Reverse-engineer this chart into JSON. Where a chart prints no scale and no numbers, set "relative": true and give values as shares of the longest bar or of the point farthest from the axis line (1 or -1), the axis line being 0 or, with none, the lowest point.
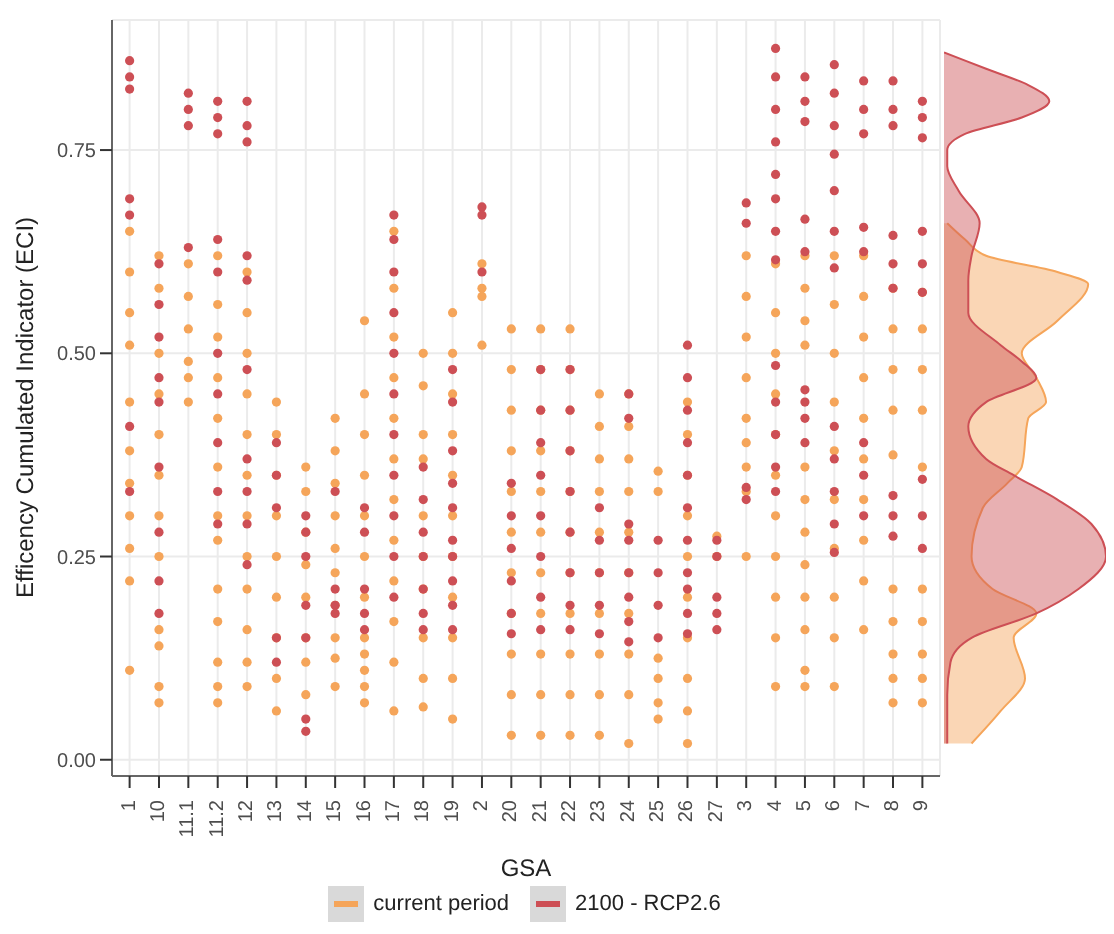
{
  "chart_data": [
    {
      "type": "scatter",
      "xlabel": "GSA",
      "ylabel": "Efficency Cumulated Indicator (ECI)",
      "categories": [
        "1",
        "10",
        "11.1",
        "11.2",
        "12",
        "13",
        "14",
        "15",
        "16",
        "17",
        "18",
        "19",
        "2",
        "20",
        "21",
        "22",
        "23",
        "24",
        "25",
        "26",
        "27",
        "3",
        "4",
        "5",
        "6",
        "7",
        "8",
        "9"
      ],
      "ylim": [
        -0.02,
        0.91
      ],
      "yticks": [
        {
          "value": 0,
          "label": "0.00"
        },
        {
          "value": 0.25,
          "label": "0.25"
        },
        {
          "value": 0.5,
          "label": "0.50"
        },
        {
          "value": 0.75,
          "label": "0.75"
        }
      ],
      "grid": true,
      "legend": "bottom",
      "marker": "circle",
      "series": [
        {
          "name": "current period",
          "color": "#f5a55a",
          "x": [
            "1",
            "1",
            "1",
            "1",
            "1",
            "1",
            "1",
            "1",
            "1",
            "1",
            "1",
            "10",
            "10",
            "10",
            "10",
            "10",
            "10",
            "10",
            "10",
            "10",
            "10",
            "10",
            "10",
            "11.1",
            "11.1",
            "11.1",
            "11.1",
            "11.1",
            "11.1",
            "11.2",
            "11.2",
            "11.2",
            "11.2",
            "11.2",
            "11.2",
            "11.2",
            "11.2",
            "11.2",
            "11.2",
            "11.2",
            "11.2",
            "11.2",
            "12",
            "12",
            "12",
            "12",
            "12",
            "12",
            "12",
            "12",
            "12",
            "12",
            "12",
            "12",
            "13",
            "13",
            "13",
            "13",
            "13",
            "13",
            "13",
            "13",
            "13",
            "14",
            "14",
            "14",
            "14",
            "14",
            "14",
            "14",
            "14",
            "15",
            "15",
            "15",
            "15",
            "15",
            "15",
            "15",
            "15",
            "15",
            "15",
            "16",
            "16",
            "16",
            "16",
            "16",
            "16",
            "16",
            "16",
            "16",
            "16",
            "16",
            "16",
            "17",
            "17",
            "17",
            "17",
            "17",
            "17",
            "17",
            "17",
            "17",
            "17",
            "17",
            "17",
            "18",
            "18",
            "18",
            "18",
            "18",
            "18",
            "18",
            "18",
            "18",
            "18",
            "19",
            "19",
            "19",
            "19",
            "19",
            "19",
            "19",
            "19",
            "19",
            "19",
            "19",
            "2",
            "2",
            "2",
            "2",
            "20",
            "20",
            "20",
            "20",
            "20",
            "20",
            "20",
            "20",
            "20",
            "20",
            "20",
            "21",
            "21",
            "21",
            "21",
            "21",
            "21",
            "21",
            "21",
            "21",
            "21",
            "21",
            "22",
            "22",
            "22",
            "22",
            "22",
            "22",
            "22",
            "22",
            "22",
            "22",
            "22",
            "23",
            "23",
            "23",
            "23",
            "23",
            "23",
            "23",
            "23",
            "23",
            "23",
            "24",
            "24",
            "24",
            "24",
            "24",
            "24",
            "24",
            "24",
            "24",
            "24",
            "25",
            "25",
            "25",
            "25",
            "25",
            "25",
            "26",
            "26",
            "26",
            "26",
            "26",
            "26",
            "26",
            "26",
            "26",
            "26",
            "27",
            "27",
            "3",
            "3",
            "3",
            "3",
            "3",
            "3",
            "3",
            "3",
            "3",
            "4",
            "4",
            "4",
            "4",
            "4",
            "4",
            "4",
            "4",
            "4",
            "4",
            "4",
            "5",
            "5",
            "5",
            "5",
            "5",
            "5",
            "5",
            "5",
            "5",
            "5",
            "5",
            "5",
            "6",
            "6",
            "6",
            "6",
            "6",
            "6",
            "6",
            "6",
            "6",
            "6",
            "7",
            "7",
            "7",
            "7",
            "7",
            "7",
            "7",
            "7",
            "7",
            "7",
            "8",
            "8",
            "8",
            "8",
            "8",
            "8",
            "8",
            "8",
            "8",
            "8",
            "9",
            "9",
            "9",
            "9",
            "9",
            "9",
            "9",
            "9",
            "9",
            "9"
          ],
          "values": [
            0.65,
            0.6,
            0.55,
            0.51,
            0.44,
            0.38,
            0.34,
            0.3,
            0.26,
            0.22,
            0.11,
            0.62,
            0.58,
            0.5,
            0.45,
            0.4,
            0.35,
            0.3,
            0.25,
            0.16,
            0.14,
            0.09,
            0.07,
            0.61,
            0.57,
            0.53,
            0.49,
            0.47,
            0.44,
            0.62,
            0.56,
            0.52,
            0.47,
            0.42,
            0.36,
            0.3,
            0.27,
            0.21,
            0.17,
            0.12,
            0.09,
            0.07,
            0.6,
            0.55,
            0.5,
            0.45,
            0.4,
            0.35,
            0.3,
            0.25,
            0.21,
            0.16,
            0.12,
            0.09,
            0.44,
            0.4,
            0.35,
            0.3,
            0.25,
            0.2,
            0.15,
            0.1,
            0.06,
            0.36,
            0.33,
            0.28,
            0.24,
            0.2,
            0.15,
            0.12,
            0.08,
            0.42,
            0.38,
            0.34,
            0.3,
            0.26,
            0.23,
            0.19,
            0.15,
            0.125,
            0.09,
            0.54,
            0.45,
            0.4,
            0.35,
            0.3,
            0.25,
            0.2,
            0.15,
            0.13,
            0.11,
            0.09,
            0.07,
            0.65,
            0.58,
            0.52,
            0.47,
            0.42,
            0.37,
            0.32,
            0.27,
            0.22,
            0.17,
            0.12,
            0.06,
            0.5,
            0.46,
            0.4,
            0.37,
            0.3,
            0.25,
            0.21,
            0.15,
            0.1,
            0.065,
            0.55,
            0.5,
            0.45,
            0.4,
            0.35,
            0.3,
            0.25,
            0.2,
            0.15,
            0.1,
            0.05,
            0.61,
            0.58,
            0.57,
            0.51,
            0.53,
            0.48,
            0.43,
            0.38,
            0.33,
            0.28,
            0.23,
            0.18,
            0.13,
            0.08,
            0.03,
            0.53,
            0.48,
            0.43,
            0.38,
            0.33,
            0.28,
            0.23,
            0.18,
            0.13,
            0.08,
            0.03,
            0.53,
            0.48,
            0.43,
            0.38,
            0.33,
            0.28,
            0.23,
            0.18,
            0.13,
            0.08,
            0.03,
            0.45,
            0.41,
            0.37,
            0.33,
            0.28,
            0.23,
            0.18,
            0.13,
            0.08,
            0.03,
            0.45,
            0.41,
            0.37,
            0.33,
            0.28,
            0.23,
            0.18,
            0.13,
            0.08,
            0.02,
            0.355,
            0.33,
            0.125,
            0.1,
            0.07,
            0.05,
            0.44,
            0.4,
            0.35,
            0.3,
            0.25,
            0.2,
            0.15,
            0.1,
            0.06,
            0.02,
            0.275,
            0.25,
            0.62,
            0.57,
            0.52,
            0.47,
            0.42,
            0.39,
            0.36,
            0.33,
            0.25,
            0.61,
            0.55,
            0.5,
            0.45,
            0.4,
            0.35,
            0.3,
            0.25,
            0.2,
            0.15,
            0.09,
            0.62,
            0.58,
            0.54,
            0.51,
            0.36,
            0.32,
            0.28,
            0.24,
            0.2,
            0.16,
            0.11,
            0.09,
            0.62,
            0.56,
            0.5,
            0.44,
            0.38,
            0.32,
            0.26,
            0.2,
            0.15,
            0.09,
            0.62,
            0.57,
            0.52,
            0.47,
            0.42,
            0.37,
            0.32,
            0.27,
            0.22,
            0.16,
            0.58,
            0.53,
            0.48,
            0.43,
            0.375,
            0.21,
            0.17,
            0.13,
            0.1,
            0.07,
            0.575,
            0.53,
            0.48,
            0.43,
            0.36,
            0.21,
            0.17,
            0.13,
            0.1,
            0.07
          ]
        },
        {
          "name": "2100 - RCP2.6",
          "color": "#cd4f55",
          "x": [
            "1",
            "1",
            "1",
            "1",
            "1",
            "1",
            "1",
            "10",
            "10",
            "10",
            "10",
            "10",
            "10",
            "10",
            "10",
            "10",
            "11.1",
            "11.1",
            "11.1",
            "11.1",
            "11.2",
            "11.2",
            "11.2",
            "11.2",
            "11.2",
            "11.2",
            "11.2",
            "11.2",
            "11.2",
            "11.2",
            "12",
            "12",
            "12",
            "12",
            "12",
            "12",
            "12",
            "12",
            "12",
            "12",
            "13",
            "13",
            "13",
            "13",
            "13",
            "14",
            "14",
            "14",
            "14",
            "14",
            "14",
            "14",
            "15",
            "15",
            "15",
            "15",
            "16",
            "16",
            "16",
            "16",
            "16",
            "17",
            "17",
            "17",
            "17",
            "17",
            "17",
            "17",
            "17",
            "17",
            "17",
            "17",
            "18",
            "18",
            "18",
            "18",
            "18",
            "18",
            "18",
            "19",
            "19",
            "19",
            "19",
            "19",
            "19",
            "19",
            "19",
            "19",
            "19",
            "2",
            "2",
            "2",
            "20",
            "20",
            "20",
            "20",
            "20",
            "20",
            "21",
            "21",
            "21",
            "21",
            "21",
            "21",
            "21",
            "21",
            "22",
            "22",
            "22",
            "22",
            "22",
            "22",
            "22",
            "22",
            "23",
            "23",
            "23",
            "23",
            "23",
            "24",
            "24",
            "24",
            "24",
            "24",
            "24",
            "24",
            "24",
            "25",
            "25",
            "25",
            "25",
            "26",
            "26",
            "26",
            "26",
            "26",
            "26",
            "26",
            "26",
            "26",
            "26",
            "26",
            "27",
            "27",
            "27",
            "27",
            "27",
            "3",
            "3",
            "3",
            "3",
            "4",
            "4",
            "4",
            "4",
            "4",
            "4",
            "4",
            "4",
            "4",
            "4",
            "4",
            "4",
            "4",
            "5",
            "5",
            "5",
            "5",
            "5",
            "5",
            "5",
            "5",
            "5",
            "6",
            "6",
            "6",
            "6",
            "6",
            "6",
            "6",
            "6",
            "6",
            "6",
            "6",
            "6",
            "7",
            "7",
            "7",
            "7",
            "7",
            "7",
            "7",
            "7",
            "8",
            "8",
            "8",
            "8",
            "8",
            "8",
            "8",
            "8",
            "8",
            "9",
            "9",
            "9",
            "9",
            "9",
            "9",
            "9",
            "9",
            "9"
          ],
          "values": [
            0.86,
            0.84,
            0.825,
            0.69,
            0.67,
            0.41,
            0.33,
            0.61,
            0.56,
            0.52,
            0.47,
            0.44,
            0.36,
            0.28,
            0.22,
            0.18,
            0.82,
            0.8,
            0.78,
            0.63,
            0.81,
            0.79,
            0.77,
            0.64,
            0.6,
            0.5,
            0.45,
            0.39,
            0.33,
            0.29,
            0.81,
            0.78,
            0.76,
            0.62,
            0.59,
            0.48,
            0.37,
            0.33,
            0.29,
            0.24,
            0.39,
            0.35,
            0.31,
            0.15,
            0.12,
            0.3,
            0.28,
            0.25,
            0.19,
            0.15,
            0.05,
            0.035,
            0.33,
            0.21,
            0.19,
            0.18,
            0.31,
            0.28,
            0.21,
            0.18,
            0.16,
            0.67,
            0.64,
            0.6,
            0.55,
            0.5,
            0.45,
            0.4,
            0.35,
            0.3,
            0.25,
            0.2,
            0.36,
            0.32,
            0.28,
            0.25,
            0.21,
            0.18,
            0.16,
            0.48,
            0.44,
            0.38,
            0.34,
            0.31,
            0.27,
            0.25,
            0.22,
            0.19,
            0.16,
            0.68,
            0.67,
            0.6,
            0.34,
            0.3,
            0.26,
            0.22,
            0.18,
            0.155,
            0.48,
            0.43,
            0.39,
            0.35,
            0.3,
            0.25,
            0.2,
            0.16,
            0.48,
            0.43,
            0.38,
            0.33,
            0.28,
            0.23,
            0.19,
            0.16,
            0.31,
            0.27,
            0.23,
            0.19,
            0.155,
            0.45,
            0.42,
            0.29,
            0.27,
            0.23,
            0.2,
            0.17,
            0.145,
            0.27,
            0.23,
            0.19,
            0.15,
            0.51,
            0.47,
            0.43,
            0.39,
            0.35,
            0.31,
            0.27,
            0.23,
            0.21,
            0.18,
            0.155,
            0.27,
            0.25,
            0.2,
            0.18,
            0.16,
            0.685,
            0.66,
            0.335,
            0.32,
            0.875,
            0.84,
            0.8,
            0.76,
            0.72,
            0.69,
            0.65,
            0.615,
            0.485,
            0.44,
            0.4,
            0.36,
            0.33,
            0.84,
            0.81,
            0.785,
            0.665,
            0.625,
            0.455,
            0.44,
            0.42,
            0.39,
            0.855,
            0.82,
            0.78,
            0.745,
            0.7,
            0.65,
            0.605,
            0.41,
            0.37,
            0.33,
            0.29,
            0.255,
            0.835,
            0.8,
            0.77,
            0.655,
            0.625,
            0.39,
            0.35,
            0.3,
            0.835,
            0.8,
            0.78,
            0.645,
            0.61,
            0.58,
            0.325,
            0.3,
            0.275,
            0.81,
            0.79,
            0.765,
            0.65,
            0.61,
            0.575,
            0.345,
            0.3,
            0.26
          ]
        }
      ]
    },
    {
      "type": "area",
      "orientation": "horizontal",
      "relative": true,
      "ylim": [
        -0.02,
        0.91
      ],
      "tick_labels": false,
      "series": [
        {
          "color": "#f5a55a",
          "x": [
            0.66,
            0.64,
            0.62,
            0.6,
            0.585,
            0.54,
            0.5,
            0.47,
            0.44,
            0.42,
            0.36,
            0.34,
            0.31,
            0.25,
            0.21,
            0.18,
            0.15,
            0.1,
            0.06,
            0.02
          ],
          "values": [
            0.02,
            0.13,
            0.26,
            0.7,
            0.89,
            0.7,
            0.48,
            0.57,
            0.63,
            0.52,
            0.48,
            0.39,
            0.24,
            0.17,
            0.3,
            0.57,
            0.43,
            0.5,
            0.35,
            0.17
          ]
        },
        {
          "color": "#cd4f55",
          "x": [
            0.87,
            0.85,
            0.83,
            0.81,
            0.79,
            0.77,
            0.75,
            0.73,
            0.7,
            0.66,
            0.62,
            0.59,
            0.55,
            0.51,
            0.49,
            0.47,
            0.44,
            0.41,
            0.37,
            0.35,
            0.32,
            0.29,
            0.25,
            0.21,
            0.18,
            0.15,
            0.12,
            0.08,
            0.02
          ],
          "values": [
            0,
            0.26,
            0.52,
            0.65,
            0.48,
            0.13,
            0.02,
            0.02,
            0.09,
            0.22,
            0.17,
            0.15,
            0.15,
            0.35,
            0.48,
            0.57,
            0.26,
            0.15,
            0.26,
            0.43,
            0.7,
            0.91,
            1,
            0.83,
            0.57,
            0.17,
            0.04,
            0.02,
            0.02
          ]
        }
      ]
    }
  ]
}
